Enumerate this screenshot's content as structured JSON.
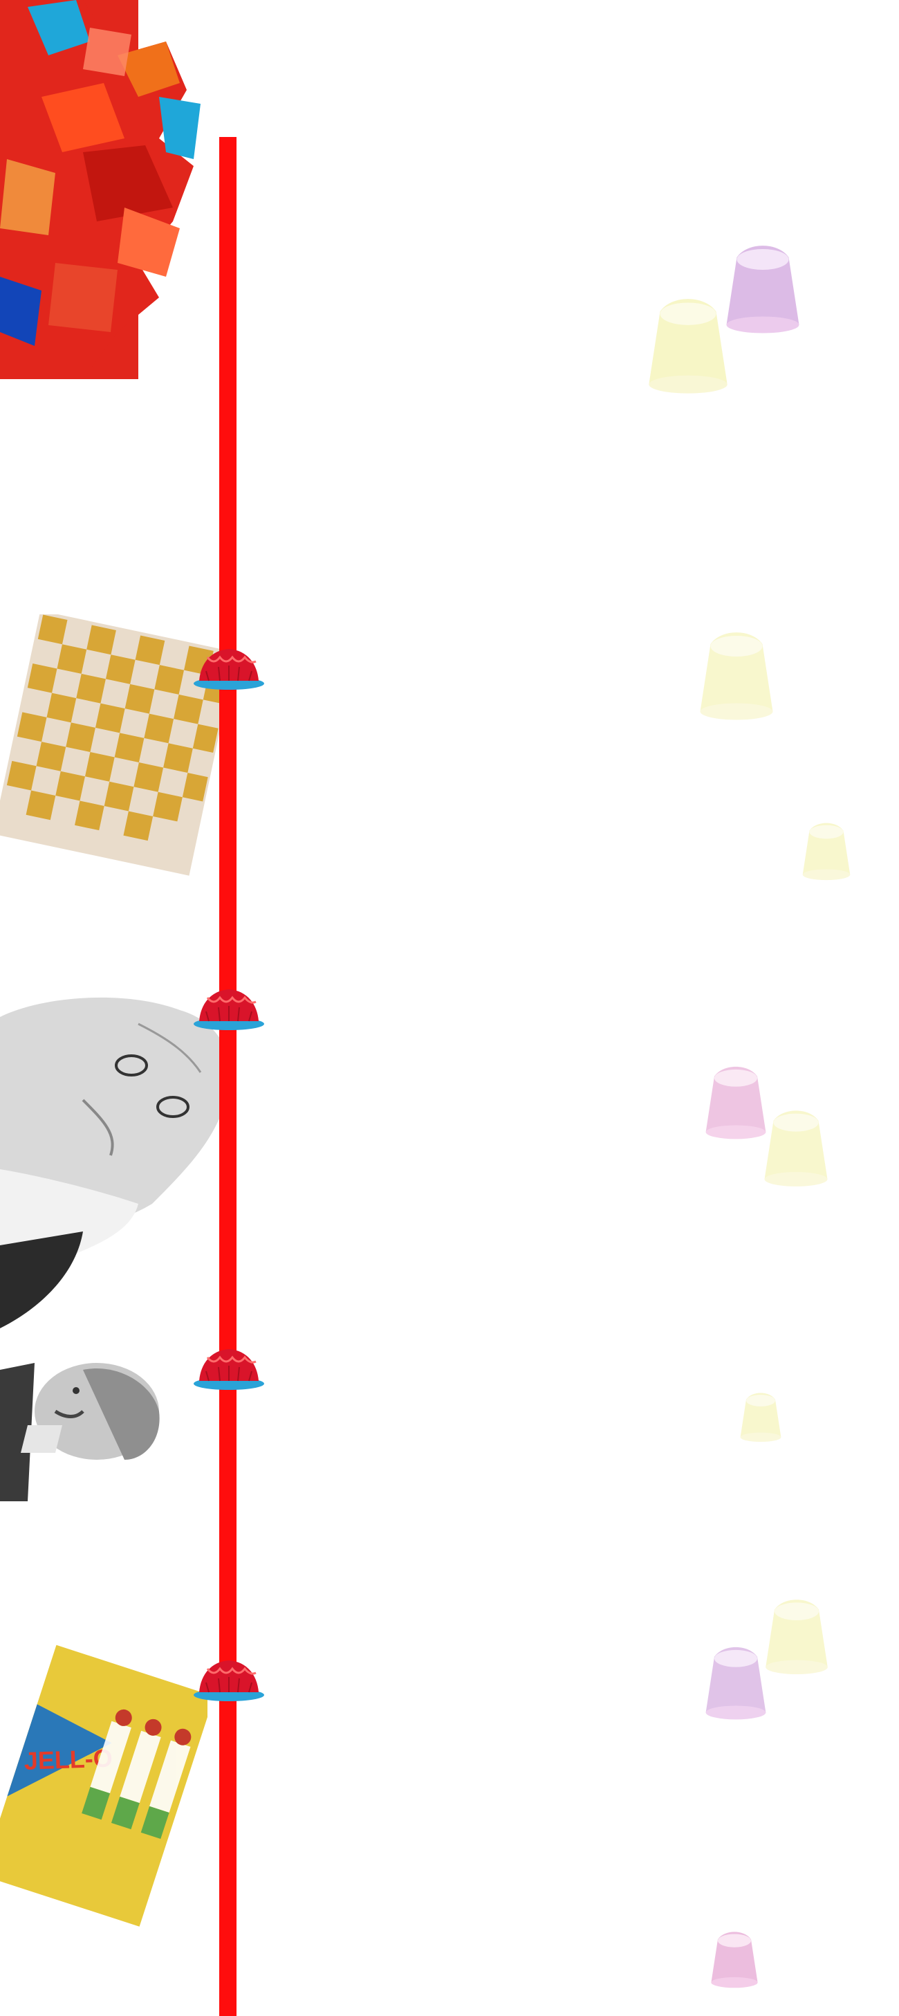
{
  "timeline": {
    "line_color": "#ff0d0d",
    "marker_count": 4
  },
  "collage": {
    "items": [
      {
        "name": "jelly-cubes-photo"
      },
      {
        "name": "gold-leaf-checkerboard-photo"
      },
      {
        "name": "bearded-man-portrait-photo"
      },
      {
        "name": "mustached-man-portrait-photo"
      },
      {
        "name": "jello-vintage-box-photo",
        "box_text": "JELL-O"
      }
    ]
  },
  "decor": {
    "jelly_icons": [
      "purple-jelly-icon",
      "yellow-jelly-icon",
      "yellow-jelly-icon",
      "yellow-jelly-icon",
      "pink-jelly-icon",
      "yellow-jelly-icon",
      "yellow-jelly-icon",
      "yellow-jelly-icon",
      "purple-jelly-icon",
      "pink-jelly-icon"
    ]
  },
  "colors": {
    "accent_red": "#ff0d0d",
    "marker_red": "#d9142a",
    "marker_plate": "#2aa3d8"
  }
}
